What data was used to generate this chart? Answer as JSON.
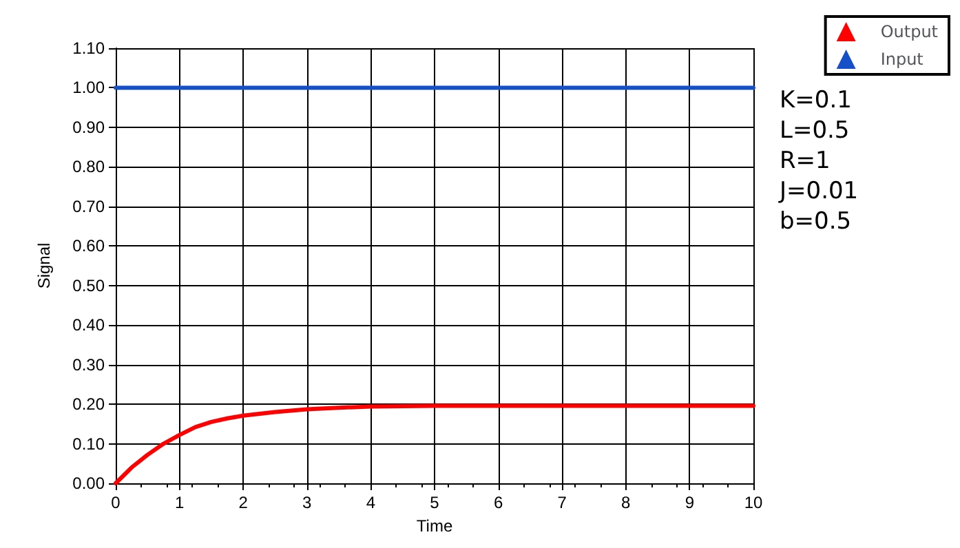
{
  "chart_data": {
    "type": "line",
    "xlabel": "Time",
    "ylabel": "Signal",
    "xlim": [
      0,
      10
    ],
    "xticks": [
      0,
      1,
      2,
      3,
      4,
      5,
      6,
      7,
      8,
      9,
      10
    ],
    "ylim": [
      0,
      1.1
    ],
    "yticks": [
      {
        "value": 0,
        "label": "0.00"
      },
      {
        "value": 0.1,
        "label": "0.10"
      },
      {
        "value": 0.2,
        "label": "0.20"
      },
      {
        "value": 0.3,
        "label": "0.30"
      },
      {
        "value": 0.4,
        "label": "0.40"
      },
      {
        "value": 0.5,
        "label": "0.50"
      },
      {
        "value": 0.6,
        "label": "0.60"
      },
      {
        "value": 0.7,
        "label": "0.70"
      },
      {
        "value": 0.8,
        "label": "0.80"
      },
      {
        "value": 0.9,
        "label": "0.90"
      },
      {
        "value": 1,
        "label": "1.00"
      },
      {
        "value": 1.1,
        "label": "1.10"
      }
    ],
    "series": [
      {
        "name": "Output",
        "color": "#ff0000",
        "x": [
          0,
          0.25,
          0.5,
          0.75,
          1,
          1.25,
          1.5,
          1.75,
          2,
          2.5,
          3,
          3.5,
          4,
          5,
          6,
          7,
          8,
          9,
          10
        ],
        "values": [
          0,
          0.04,
          0.072,
          0.1,
          0.122,
          0.142,
          0.155,
          0.164,
          0.171,
          0.18,
          0.187,
          0.191,
          0.194,
          0.196,
          0.196,
          0.196,
          0.196,
          0.196,
          0.196
        ]
      },
      {
        "name": "Input",
        "color": "#1650c8",
        "x": [
          0,
          10
        ],
        "values": [
          1,
          1
        ]
      }
    ],
    "annotations": [
      "K=0.1",
      "L=0.5",
      "R=1",
      "J=0.01",
      "b=0.5"
    ],
    "grid": true,
    "legend": "top right",
    "marker": "none",
    "line_style": "solid"
  }
}
